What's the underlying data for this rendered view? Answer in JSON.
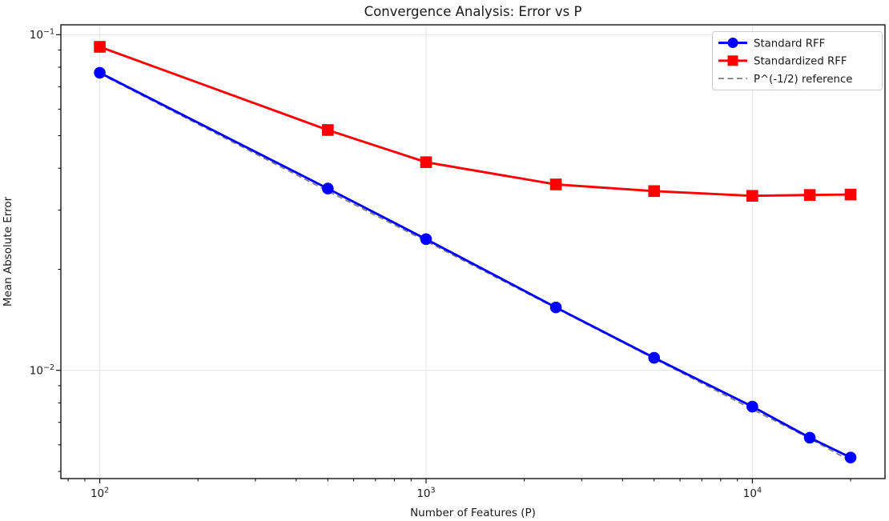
{
  "chart_data": {
    "type": "line",
    "title": "Convergence Analysis: Error vs P",
    "xlabel": "Number of Features (P)",
    "ylabel": "Mean Absolute Error",
    "x_scale": "log",
    "y_scale": "log",
    "xlim": [
      76,
      25500
    ],
    "ylim": [
      0.00476,
      0.107
    ],
    "grid": "major-only, light gray",
    "legend_position": "upper right",
    "x": [
      100,
      500,
      1000,
      2500,
      5000,
      10000,
      15000,
      20000
    ],
    "series": [
      {
        "name": "Standard RFF",
        "color": "#0000ff",
        "marker": "circle",
        "line_style": "solid",
        "values": [
          0.077,
          0.0348,
          0.0246,
          0.0154,
          0.0109,
          0.0078,
          0.0063,
          0.0055
        ]
      },
      {
        "name": "Standardized RFF",
        "color": "#ff0000",
        "marker": "square",
        "line_style": "solid",
        "values": [
          0.092,
          0.052,
          0.0417,
          0.0358,
          0.0342,
          0.0331,
          0.0333,
          0.0334
        ]
      },
      {
        "name": "P^(-1/2) reference",
        "color": "#808080",
        "marker": "none",
        "line_style": "dashed",
        "values": [
          0.077,
          0.0344,
          0.0244,
          0.0154,
          0.0109,
          0.0077,
          0.0063,
          0.0054
        ]
      }
    ],
    "x_ticks": [
      {
        "value": 100,
        "label": "10^2"
      },
      {
        "value": 1000,
        "label": "10^3"
      },
      {
        "value": 10000,
        "label": "10^4"
      }
    ],
    "y_ticks": [
      {
        "value": 0.1,
        "label": "10^-1"
      },
      {
        "value": 0.01,
        "label": "10^-2"
      }
    ]
  }
}
